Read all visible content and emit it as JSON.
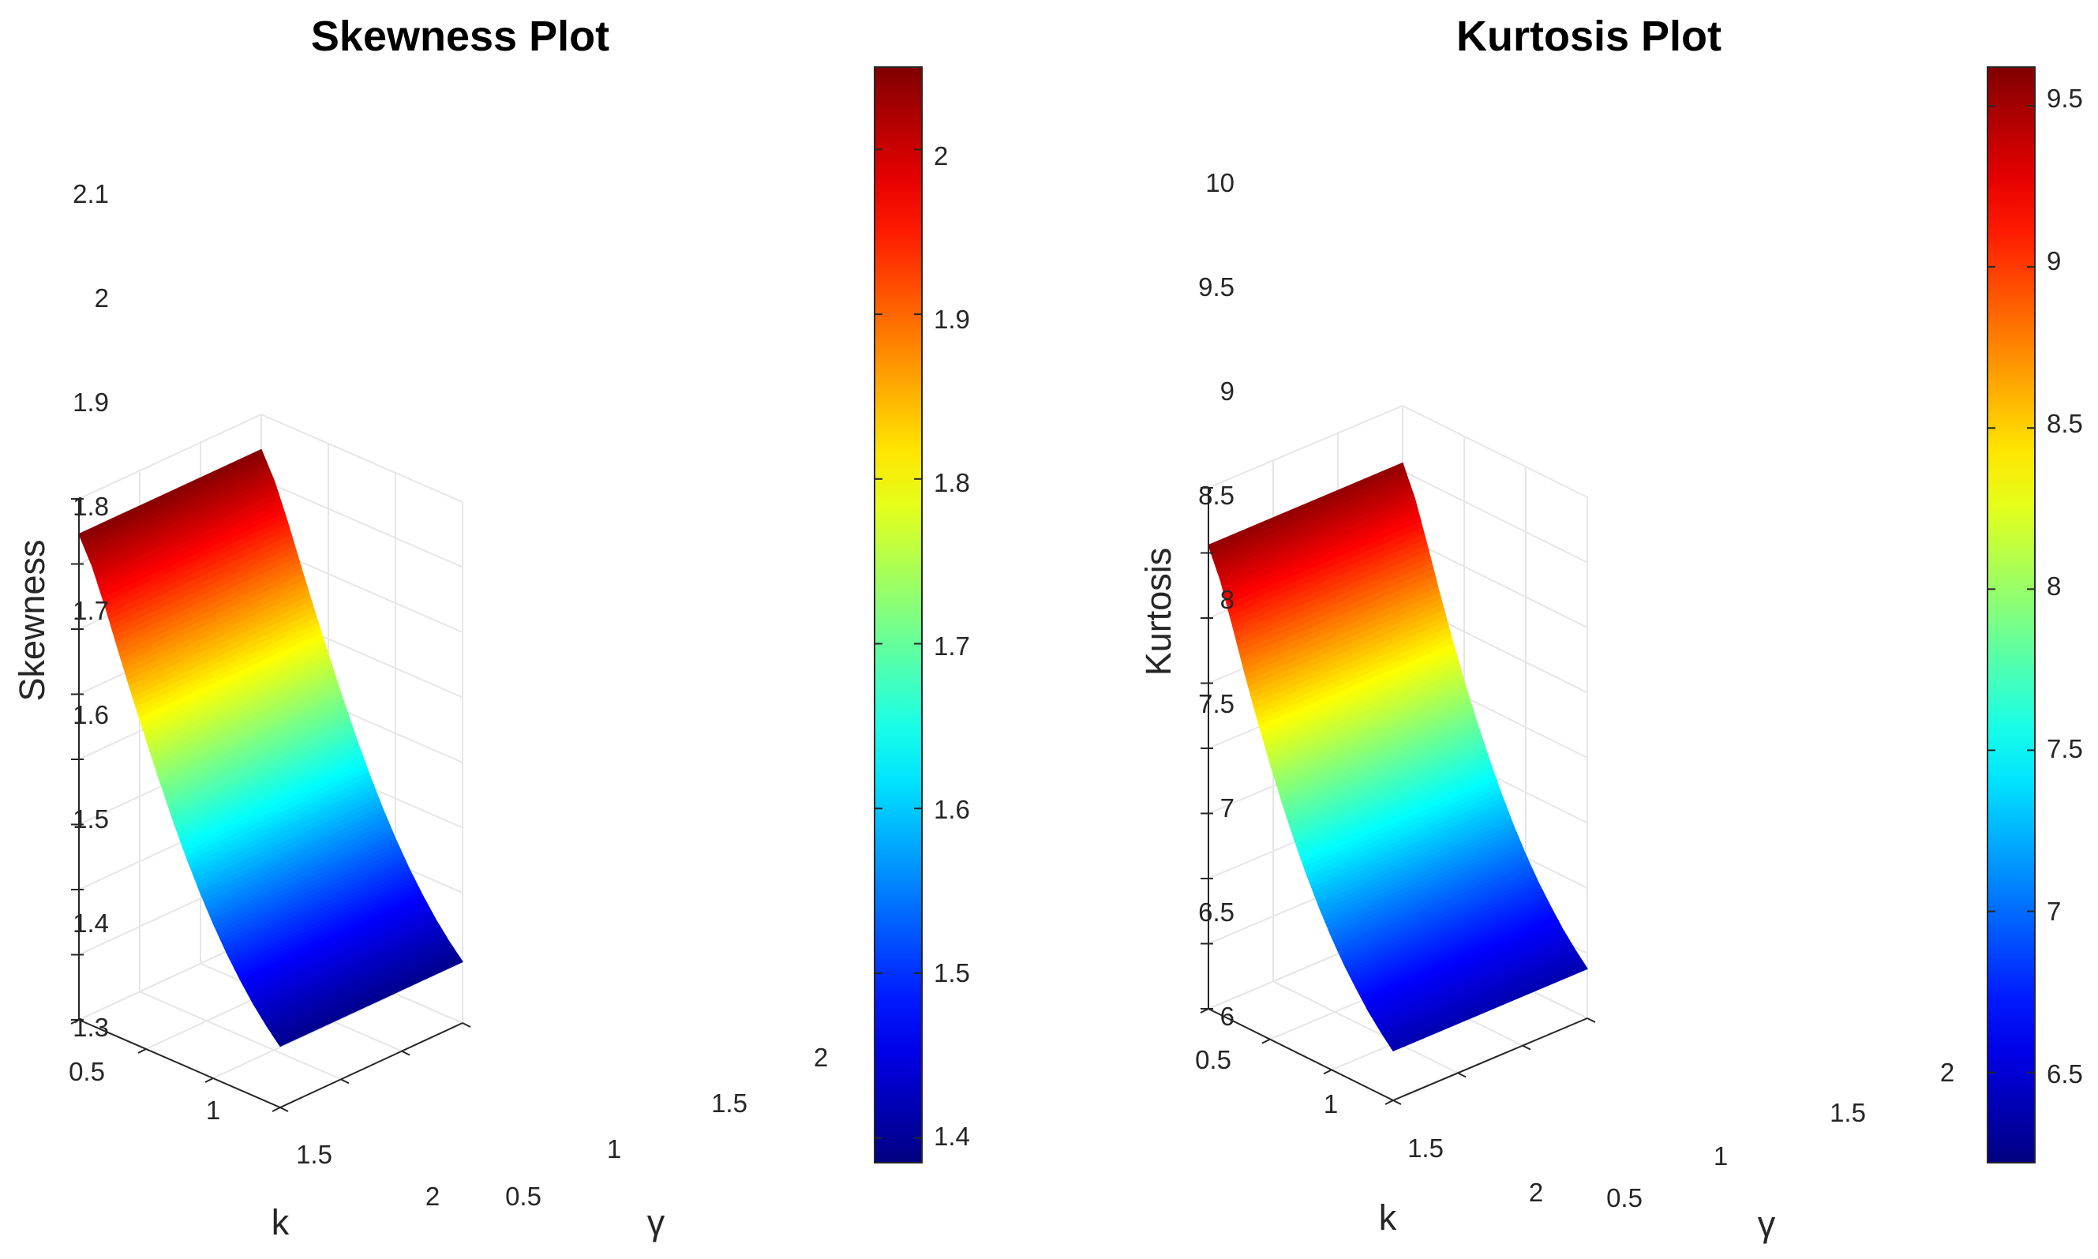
{
  "chart_data": [
    {
      "type": "surface",
      "title": "Skewness Plot",
      "xlabel": "k",
      "ylabel": "γ",
      "zlabel": "Skewness",
      "x_ticks": [
        "0.5",
        "1",
        "1.5",
        "2"
      ],
      "y_ticks": [
        "0.5",
        "1",
        "1.5",
        "2"
      ],
      "z_ticks": [
        "1.3",
        "1.4",
        "1.5",
        "1.6",
        "1.7",
        "1.8",
        "1.9",
        "2",
        "2.1"
      ],
      "zlim": [
        1.3,
        2.1
      ],
      "k": [
        0.5,
        0.6,
        0.7,
        0.8,
        0.9,
        1.0,
        1.1,
        1.2,
        1.3,
        1.4,
        1.5,
        1.6,
        1.7,
        1.8,
        1.9,
        2.0
      ],
      "z_vs_k": [
        2.046,
        2.005,
        1.95,
        1.89,
        1.832,
        1.776,
        1.722,
        1.67,
        1.622,
        1.578,
        1.538,
        1.502,
        1.47,
        1.441,
        1.416,
        1.394
      ],
      "gamma_range": [
        0.5,
        2.0
      ],
      "surface_varies_with_gamma": false,
      "colorbar": {
        "ticks": [
          "1.4",
          "1.5",
          "1.6",
          "1.7",
          "1.8",
          "1.9",
          "2"
        ],
        "range": [
          1.385,
          2.05
        ],
        "colormap": "jet"
      }
    },
    {
      "type": "surface",
      "title": "Kurtosis Plot",
      "xlabel": "k",
      "ylabel": "γ",
      "zlabel": "Kurtosis",
      "x_ticks": [
        "0.5",
        "1",
        "1.5",
        "2"
      ],
      "y_ticks": [
        "0.5",
        "1",
        "1.5",
        "2"
      ],
      "z_ticks": [
        "6",
        "6.5",
        "7",
        "7.5",
        "8",
        "8.5",
        "9",
        "9.5",
        "10"
      ],
      "zlim": [
        6,
        10
      ],
      "k": [
        0.5,
        0.6,
        0.7,
        0.8,
        0.9,
        1.0,
        1.1,
        1.2,
        1.3,
        1.4,
        1.5,
        1.6,
        1.7,
        1.8,
        1.9,
        2.0
      ],
      "z_vs_k": [
        9.56,
        9.33,
        9.02,
        8.7,
        8.4,
        8.12,
        7.86,
        7.62,
        7.4,
        7.2,
        7.02,
        6.86,
        6.72,
        6.59,
        6.48,
        6.38
      ],
      "gamma_range": [
        0.5,
        2.0
      ],
      "surface_varies_with_gamma": false,
      "colorbar": {
        "ticks": [
          "6.5",
          "7",
          "7.5",
          "8",
          "8.5",
          "9",
          "9.5"
        ],
        "range": [
          6.22,
          9.62
        ],
        "colormap": "jet"
      }
    }
  ]
}
